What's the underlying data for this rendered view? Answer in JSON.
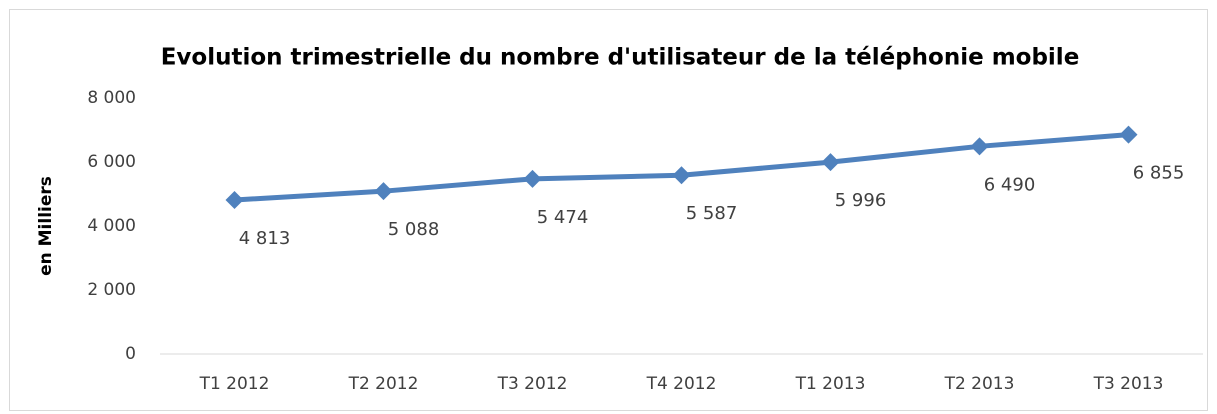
{
  "chart_data": {
    "type": "line",
    "title": "Evolution trimestrielle du nombre d'utilisateur de la téléphonie mobile",
    "y_label": "en Milliers",
    "categories": [
      "T1 2012",
      "T2 2012",
      "T3 2012",
      "T4 2012",
      "T1 2013",
      "T2 2013",
      "T3 2013"
    ],
    "series": [
      {
        "name": null,
        "color": "#4f81bd",
        "values": [
          4813,
          5088,
          5474,
          5587,
          5996,
          6490,
          6855
        ],
        "value_labels": [
          "4 813",
          "5 088",
          "5 474",
          "5 587",
          "5 996",
          "6 490",
          "6 855"
        ]
      }
    ],
    "ylim": [
      0,
      8000
    ],
    "yticks": [
      0,
      {
        "value": 2000,
        "label": "2 000"
      },
      {
        "value": 4000,
        "label": "4 000"
      },
      {
        "value": 6000,
        "label": "6 000"
      },
      {
        "value": 8000,
        "label": "8 000"
      }
    ],
    "grid": false
  }
}
